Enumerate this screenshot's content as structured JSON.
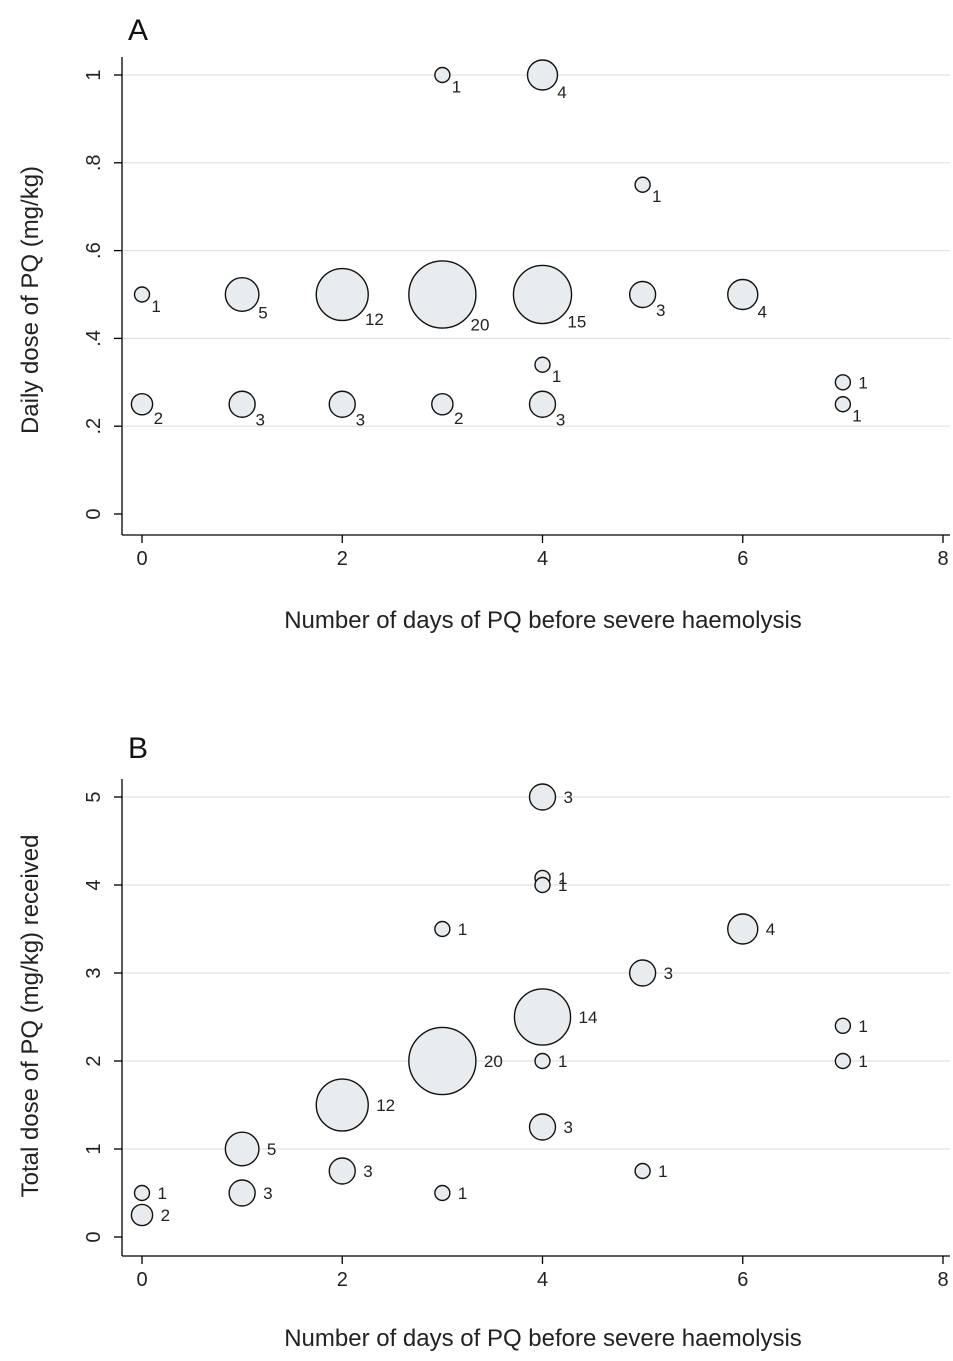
{
  "chart_data": [
    {
      "panel": "A",
      "type": "scatter",
      "xlabel": "Number of days of PQ before severe haemolysis",
      "ylabel": "Daily dose of PQ (mg/kg)",
      "xlim": [
        0,
        8
      ],
      "ylim": [
        0,
        1
      ],
      "xticks": [
        0,
        2,
        4,
        6,
        8
      ],
      "xtick_labels": [
        "0",
        "2",
        "4",
        "6",
        "8"
      ],
      "yticks": [
        0,
        0.2,
        0.4,
        0.6,
        0.8,
        1
      ],
      "ytick_labels": [
        "0",
        ".2",
        ".4",
        ".6",
        ".8",
        "1"
      ],
      "grid": true,
      "marker_size_encodes": "count",
      "points": [
        {
          "x": 3,
          "y": 1.0,
          "n": 1,
          "label": "1",
          "pos": "sw"
        },
        {
          "x": 4,
          "y": 1.0,
          "n": 4,
          "label": "4",
          "pos": "sw"
        },
        {
          "x": 5,
          "y": 0.75,
          "n": 1,
          "label": "1",
          "pos": "sw"
        },
        {
          "x": 0,
          "y": 0.5,
          "n": 1,
          "label": "1",
          "pos": "sw"
        },
        {
          "x": 1,
          "y": 0.5,
          "n": 5,
          "label": "5",
          "pos": "sw"
        },
        {
          "x": 2,
          "y": 0.5,
          "n": 12,
          "label": "12",
          "pos": "sw"
        },
        {
          "x": 3,
          "y": 0.5,
          "n": 20,
          "label": "20",
          "pos": "sw"
        },
        {
          "x": 4,
          "y": 0.5,
          "n": 15,
          "label": "15",
          "pos": "sw"
        },
        {
          "x": 5,
          "y": 0.5,
          "n": 3,
          "label": "3",
          "pos": "sw"
        },
        {
          "x": 6,
          "y": 0.5,
          "n": 4,
          "label": "4",
          "pos": "sw"
        },
        {
          "x": 4,
          "y": 0.34,
          "n": 1,
          "label": "1",
          "pos": "sw"
        },
        {
          "x": 7,
          "y": 0.3,
          "n": 1,
          "label": "1",
          "pos": "e"
        },
        {
          "x": 0,
          "y": 0.25,
          "n": 2,
          "label": "2",
          "pos": "sw"
        },
        {
          "x": 1,
          "y": 0.25,
          "n": 3,
          "label": "3",
          "pos": "sw"
        },
        {
          "x": 2,
          "y": 0.25,
          "n": 3,
          "label": "3",
          "pos": "sw"
        },
        {
          "x": 3,
          "y": 0.25,
          "n": 2,
          "label": "2",
          "pos": "sw"
        },
        {
          "x": 4,
          "y": 0.25,
          "n": 3,
          "label": "3",
          "pos": "sw"
        },
        {
          "x": 7,
          "y": 0.25,
          "n": 1,
          "label": "1",
          "pos": "sw"
        }
      ]
    },
    {
      "panel": "B",
      "type": "scatter",
      "xlabel": "Number of days of PQ before severe haemolysis",
      "ylabel": "Total dose of PQ (mg/kg) received",
      "xlim": [
        0,
        8
      ],
      "ylim": [
        0,
        5
      ],
      "xticks": [
        0,
        2,
        4,
        6,
        8
      ],
      "xtick_labels": [
        "0",
        "2",
        "4",
        "6",
        "8"
      ],
      "yticks": [
        0,
        1,
        2,
        3,
        4,
        5
      ],
      "ytick_labels": [
        "0",
        "1",
        "2",
        "3",
        "4",
        "5"
      ],
      "grid": true,
      "marker_size_encodes": "count",
      "points": [
        {
          "x": 4,
          "y": 5.0,
          "n": 3,
          "label": "3",
          "pos": "e"
        },
        {
          "x": 4,
          "y": 4.08,
          "n": 1,
          "label": "1",
          "pos": "e"
        },
        {
          "x": 4,
          "y": 4.0,
          "n": 1,
          "label": "1",
          "pos": "e"
        },
        {
          "x": 3,
          "y": 3.5,
          "n": 1,
          "label": "1",
          "pos": "e"
        },
        {
          "x": 6,
          "y": 3.5,
          "n": 4,
          "label": "4",
          "pos": "e"
        },
        {
          "x": 5,
          "y": 3.0,
          "n": 3,
          "label": "3",
          "pos": "e"
        },
        {
          "x": 4,
          "y": 2.5,
          "n": 14,
          "label": "14",
          "pos": "e"
        },
        {
          "x": 7,
          "y": 2.4,
          "n": 1,
          "label": "1",
          "pos": "e"
        },
        {
          "x": 3,
          "y": 2.0,
          "n": 20,
          "label": "20",
          "pos": "e"
        },
        {
          "x": 4,
          "y": 2.0,
          "n": 1,
          "label": "1",
          "pos": "e"
        },
        {
          "x": 7,
          "y": 2.0,
          "n": 1,
          "label": "1",
          "pos": "e"
        },
        {
          "x": 2,
          "y": 1.5,
          "n": 12,
          "label": "12",
          "pos": "e"
        },
        {
          "x": 4,
          "y": 1.25,
          "n": 3,
          "label": "3",
          "pos": "e"
        },
        {
          "x": 1,
          "y": 1.0,
          "n": 5,
          "label": "5",
          "pos": "e"
        },
        {
          "x": 2,
          "y": 0.75,
          "n": 3,
          "label": "3",
          "pos": "e"
        },
        {
          "x": 5,
          "y": 0.75,
          "n": 1,
          "label": "1",
          "pos": "e"
        },
        {
          "x": 0,
          "y": 0.5,
          "n": 1,
          "label": "1",
          "pos": "e"
        },
        {
          "x": 1,
          "y": 0.5,
          "n": 3,
          "label": "3",
          "pos": "e"
        },
        {
          "x": 3,
          "y": 0.5,
          "n": 1,
          "label": "1",
          "pos": "e"
        },
        {
          "x": 0,
          "y": 0.25,
          "n": 2,
          "label": "2",
          "pos": "e"
        }
      ]
    }
  ]
}
